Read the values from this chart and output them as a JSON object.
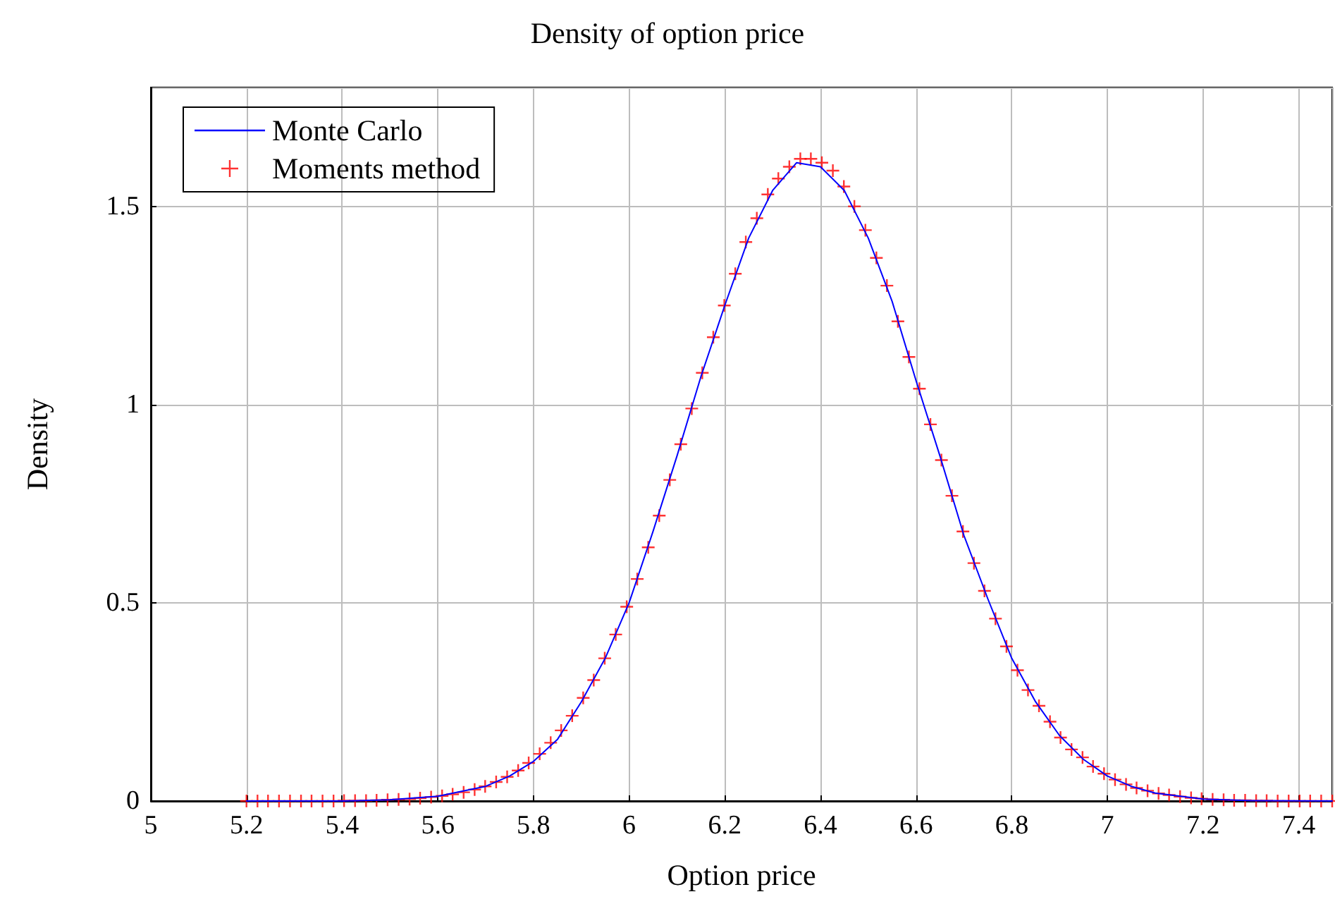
{
  "chart_data": {
    "type": "line",
    "title": "Density of option price",
    "xlabel": "Option price",
    "ylabel": "Density",
    "xlim": [
      5,
      7.47
    ],
    "xticks": [
      5,
      5.2,
      5.4,
      5.6,
      5.8,
      6,
      6.2,
      6.4,
      6.6,
      6.8,
      7,
      7.2,
      7.4
    ],
    "ylim": [
      0,
      1.8
    ],
    "yticks": [
      0,
      0.5,
      1,
      1.5
    ],
    "grid": true,
    "legend": "top left",
    "series": [
      {
        "name": "Monte Carlo",
        "color": "#0000ff",
        "marker": "none",
        "line_style": "solid",
        "x": [
          5.2,
          5.4,
          5.5,
          5.6,
          5.7,
          5.75,
          5.8,
          5.85,
          5.9,
          5.95,
          6.0,
          6.05,
          6.1,
          6.15,
          6.2,
          6.25,
          6.3,
          6.35,
          6.4,
          6.45,
          6.5,
          6.55,
          6.6,
          6.65,
          6.7,
          6.75,
          6.8,
          6.85,
          6.9,
          6.95,
          7.0,
          7.05,
          7.1,
          7.2,
          7.3,
          7.47
        ],
        "values": [
          0,
          0,
          0.003,
          0.012,
          0.037,
          0.063,
          0.1,
          0.155,
          0.25,
          0.36,
          0.5,
          0.68,
          0.87,
          1.07,
          1.25,
          1.42,
          1.54,
          1.61,
          1.6,
          1.54,
          1.42,
          1.26,
          1.06,
          0.87,
          0.67,
          0.51,
          0.36,
          0.25,
          0.165,
          0.105,
          0.063,
          0.037,
          0.02,
          0.005,
          0.001,
          0
        ]
      },
      {
        "name": "Moments method",
        "type": "scatter",
        "color": "#ff0000",
        "marker": "cross",
        "x": [
          5.2,
          5.223,
          5.245,
          5.268,
          5.291,
          5.314,
          5.336,
          5.359,
          5.382,
          5.404,
          5.427,
          5.45,
          5.472,
          5.495,
          5.518,
          5.541,
          5.563,
          5.586,
          5.609,
          5.631,
          5.654,
          5.677,
          5.699,
          5.722,
          5.745,
          5.768,
          5.79,
          5.813,
          5.836,
          5.858,
          5.881,
          5.904,
          5.926,
          5.949,
          5.972,
          5.995,
          6.017,
          6.04,
          6.063,
          6.085,
          6.108,
          6.131,
          6.153,
          6.176,
          6.199,
          6.222,
          6.244,
          6.267,
          6.29,
          6.312,
          6.335,
          6.358,
          6.38,
          6.403,
          6.426,
          6.449,
          6.471,
          6.494,
          6.517,
          6.539,
          6.562,
          6.585,
          6.607,
          6.63,
          6.653,
          6.675,
          6.698,
          6.721,
          6.743,
          6.766,
          6.789,
          6.812,
          6.834,
          6.857,
          6.88,
          6.902,
          6.925,
          6.948,
          6.97,
          6.993,
          7.016,
          7.039,
          7.061,
          7.084,
          7.107,
          7.129,
          7.152,
          7.175,
          7.197,
          7.22,
          7.243,
          7.265,
          7.288,
          7.311,
          7.333,
          7.356,
          7.379,
          7.402,
          7.424,
          7.447,
          7.47
        ],
        "values": [
          0,
          0,
          0,
          0,
          0,
          0,
          0,
          0,
          0,
          0.001,
          0.001,
          0.001,
          0.002,
          0.003,
          0.004,
          0.005,
          0.007,
          0.01,
          0.013,
          0.017,
          0.022,
          0.029,
          0.037,
          0.048,
          0.061,
          0.077,
          0.096,
          0.119,
          0.147,
          0.178,
          0.215,
          0.26,
          0.305,
          0.36,
          0.42,
          0.49,
          0.56,
          0.64,
          0.72,
          0.81,
          0.9,
          0.99,
          1.08,
          1.17,
          1.25,
          1.33,
          1.41,
          1.47,
          1.53,
          1.57,
          1.6,
          1.62,
          1.62,
          1.61,
          1.59,
          1.55,
          1.5,
          1.44,
          1.37,
          1.3,
          1.21,
          1.12,
          1.04,
          0.95,
          0.86,
          0.77,
          0.68,
          0.6,
          0.53,
          0.46,
          0.39,
          0.33,
          0.28,
          0.24,
          0.2,
          0.16,
          0.13,
          0.11,
          0.087,
          0.069,
          0.054,
          0.042,
          0.033,
          0.026,
          0.019,
          0.015,
          0.011,
          0.008,
          0.006,
          0.004,
          0.003,
          0.002,
          0.002,
          0.001,
          0.001,
          0,
          0,
          0,
          0,
          0,
          0
        ]
      }
    ]
  }
}
